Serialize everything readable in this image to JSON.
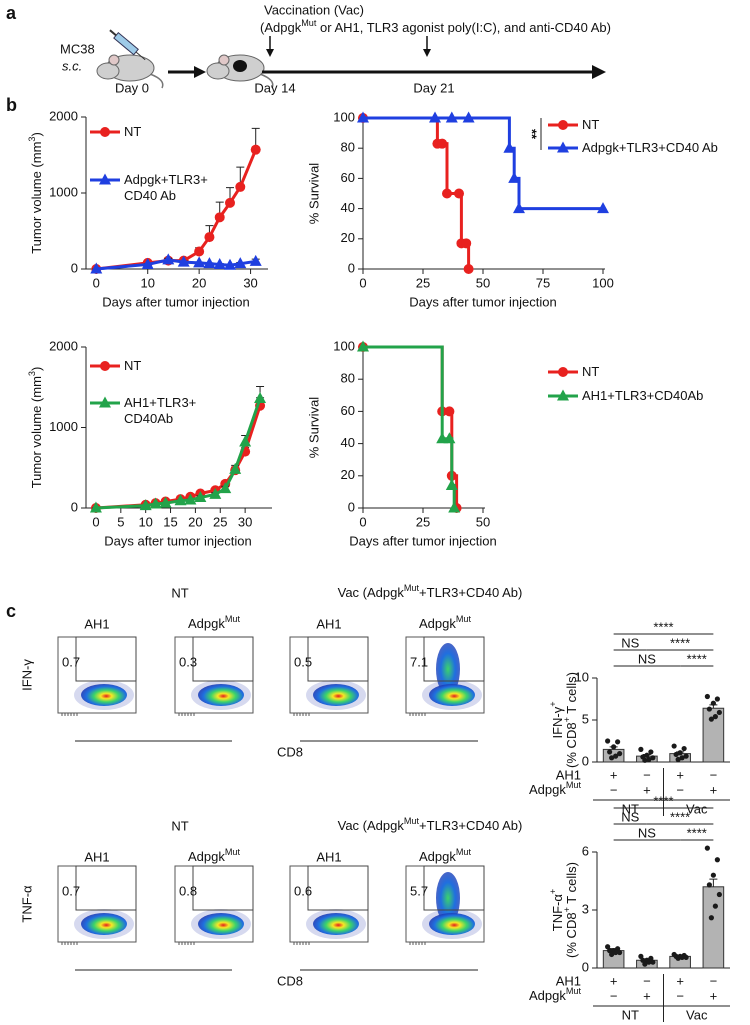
{
  "panels": [
    "a",
    "b",
    "c"
  ],
  "schematic": {
    "title": "Vaccination (Vac)",
    "detail": [
      "(Adpgk",
      "Mut",
      " or AH1, TLR3 agonist poly(I:C), and anti-CD40 Ab)"
    ],
    "cell_line": "MC38",
    "route": "s.c.",
    "days": [
      "Day 0",
      "Day 14",
      "Day 21"
    ]
  },
  "chart_data": [
    {
      "type": "line",
      "x_label": "Days after tumor injection",
      "y_label": [
        "Tumor volume (mm",
        "3",
        ")"
      ],
      "xlim": [
        -2,
        33
      ],
      "ylim": [
        0,
        2000
      ],
      "xticks": [
        0,
        10,
        20,
        30
      ],
      "yticks": [
        0,
        1000,
        2000
      ],
      "series": [
        {
          "name": "NT",
          "color": "#e8211f",
          "marker": "circle",
          "x": [
            0,
            10,
            14,
            17,
            20,
            22,
            24,
            26,
            28,
            31
          ],
          "values": [
            0,
            80,
            110,
            110,
            230,
            420,
            680,
            870,
            1080,
            1570
          ],
          "errors": [
            0,
            10,
            15,
            20,
            50,
            150,
            200,
            200,
            260,
            280
          ]
        },
        {
          "name": "Adpgk+TLR3+\nCD40 Ab",
          "color": "#1f3fe0",
          "marker": "triangle",
          "x": [
            0,
            10,
            14,
            17,
            20,
            22,
            24,
            26,
            28,
            31
          ],
          "values": [
            0,
            60,
            120,
            90,
            80,
            70,
            60,
            50,
            70,
            100
          ],
          "errors": [
            0,
            10,
            20,
            15,
            10,
            10,
            10,
            10,
            15,
            30
          ]
        }
      ]
    },
    {
      "type": "line",
      "step": true,
      "x_label": "Days after tumor injection",
      "y_label": "% Survival",
      "xlim": [
        0,
        100
      ],
      "ylim": [
        0,
        100
      ],
      "xticks": [
        0,
        25,
        50,
        75,
        100
      ],
      "yticks": [
        0,
        20,
        40,
        60,
        80,
        100
      ],
      "annotation": "**",
      "series": [
        {
          "name": "NT",
          "color": "#e8211f",
          "marker": "circle",
          "x": [
            0,
            31,
            33,
            35,
            40,
            41,
            43,
            44
          ],
          "values": [
            100,
            83,
            83,
            50,
            50,
            17,
            17,
            0
          ]
        },
        {
          "name": "Adpgk+TLR3+CD40 Ab",
          "color": "#1f3fe0",
          "marker": "triangle",
          "x": [
            0,
            30,
            37,
            44,
            61,
            63,
            65,
            100
          ],
          "values": [
            100,
            100,
            100,
            100,
            80,
            60,
            40,
            40
          ]
        }
      ]
    },
    {
      "type": "line",
      "x_label": "Days after tumor injection",
      "y_label": [
        "Tumor volume (mm",
        "3",
        ")"
      ],
      "xlim": [
        -2,
        35
      ],
      "ylim": [
        0,
        2000
      ],
      "xticks": [
        0,
        5,
        10,
        15,
        20,
        25,
        30
      ],
      "yticks": [
        0,
        1000,
        2000
      ],
      "series": [
        {
          "name": "NT",
          "color": "#e8211f",
          "marker": "circle",
          "x": [
            0,
            10,
            12,
            14,
            17,
            19,
            21,
            24,
            26,
            28,
            30,
            33
          ],
          "values": [
            0,
            40,
            60,
            80,
            110,
            140,
            180,
            220,
            300,
            470,
            700,
            1270
          ],
          "errors": [
            0,
            5,
            5,
            10,
            10,
            15,
            20,
            20,
            30,
            40,
            50,
            100
          ]
        },
        {
          "name": "AH1+TLR3+\nCD40Ab",
          "color": "#22a34a",
          "marker": "triangle",
          "x": [
            0,
            10,
            12,
            14,
            17,
            19,
            21,
            24,
            26,
            28,
            30,
            33
          ],
          "values": [
            0,
            30,
            50,
            60,
            90,
            100,
            130,
            170,
            240,
            480,
            820,
            1360
          ],
          "errors": [
            0,
            5,
            5,
            10,
            10,
            10,
            20,
            20,
            30,
            50,
            80,
            150
          ]
        }
      ]
    },
    {
      "type": "line",
      "step": true,
      "x_label": "Days after tumor injection",
      "y_label": "% Survival",
      "xlim": [
        0,
        50
      ],
      "ylim": [
        0,
        100
      ],
      "xticks": [
        0,
        25,
        50
      ],
      "yticks": [
        0,
        20,
        40,
        60,
        80,
        100
      ],
      "series": [
        {
          "name": "NT",
          "color": "#e8211f",
          "marker": "circle",
          "x": [
            0,
            33,
            36,
            37,
            39
          ],
          "values": [
            100,
            60,
            60,
            20,
            0
          ]
        },
        {
          "name": "AH1+TLR3+CD40Ab",
          "color": "#22a34a",
          "marker": "triangle",
          "x": [
            0,
            33,
            36,
            37,
            38
          ],
          "values": [
            100,
            43,
            43,
            14,
            0
          ]
        }
      ]
    },
    {
      "type": "bar",
      "y_label": [
        [
          "IFN-γ",
          "+"
        ],
        [
          "(% CD8",
          "+",
          " T cells)"
        ]
      ],
      "color": "#b3b3b3",
      "values": [
        1.5,
        0.7,
        1.0,
        6.4
      ],
      "errors": [
        0.3,
        0.2,
        0.2,
        0.4
      ],
      "points": [
        [
          2.5,
          2.4,
          1.8,
          1.2,
          1.0,
          0.7,
          0.5
        ],
        [
          1.5,
          1.2,
          0.8,
          0.6,
          0.5,
          0.3,
          0.2
        ],
        [
          1.9,
          1.6,
          1.1,
          0.9,
          0.7,
          0.5,
          0.3
        ],
        [
          7.8,
          7.5,
          7.0,
          6.3,
          5.9,
          5.4,
          5.1
        ]
      ],
      "ylim": [
        0,
        10
      ],
      "yticks": [
        0,
        5,
        10
      ],
      "significance": [
        "****",
        "NS",
        "****",
        "NS",
        "****"
      ],
      "rows": [
        {
          "label": "AH1",
          "signs": [
            "+",
            "−",
            "+",
            "−"
          ]
        },
        {
          "label": [
            "Adpgk",
            "Mut"
          ],
          "signs": [
            "−",
            "+",
            "−",
            "+"
          ]
        }
      ],
      "groups": [
        "NT",
        "Vac"
      ]
    },
    {
      "type": "bar",
      "y_label": [
        [
          "TNF-α",
          "+"
        ],
        [
          "(% CD8",
          "+",
          " T cells)"
        ]
      ],
      "color": "#b3b3b3",
      "values": [
        0.9,
        0.4,
        0.6,
        4.2
      ],
      "errors": [
        0.1,
        0.05,
        0.05,
        0.4
      ],
      "points": [
        [
          1.1,
          1.0,
          0.9,
          0.9,
          0.8,
          0.8,
          0.7
        ],
        [
          0.6,
          0.5,
          0.4,
          0.4,
          0.3,
          0.3,
          0.2
        ],
        [
          0.7,
          0.65,
          0.6,
          0.6,
          0.55,
          0.55,
          0.5
        ],
        [
          6.2,
          5.6,
          4.8,
          4.3,
          3.8,
          3.2,
          2.6
        ]
      ],
      "ylim": [
        0,
        6
      ],
      "yticks": [
        0,
        3,
        6
      ],
      "significance": [
        "****",
        "NS",
        "****",
        "NS",
        "****"
      ],
      "rows": [
        {
          "label": "AH1",
          "signs": [
            "+",
            "−",
            "+",
            "−"
          ]
        },
        {
          "label": [
            "Adpgk",
            "Mut"
          ],
          "signs": [
            "−",
            "+",
            "−",
            "+"
          ]
        }
      ],
      "groups": [
        "NT",
        "Vac"
      ]
    }
  ],
  "flow": [
    {
      "y_label": "IFN-γ",
      "x_label": "CD8",
      "groups": [
        "NT",
        [
          "Vac (Adpgk",
          "Mut",
          "+TLR3+CD40 Ab)"
        ]
      ],
      "columns": [
        "AH1",
        [
          "Adpgk",
          "Mut"
        ],
        "AH1",
        [
          "Adpgk",
          "Mut"
        ]
      ],
      "gates": [
        0.7,
        0.3,
        0.5,
        7.1
      ]
    },
    {
      "y_label": "TNF-α",
      "x_label": "CD8",
      "groups": [
        "NT",
        [
          "Vac (Adpgk",
          "Mut",
          "+TLR3+CD40 Ab)"
        ]
      ],
      "columns": [
        "AH1",
        [
          "Adpgk",
          "Mut"
        ],
        "AH1",
        [
          "Adpgk",
          "Mut"
        ]
      ],
      "gates": [
        0.7,
        0.8,
        0.6,
        5.7
      ]
    }
  ]
}
